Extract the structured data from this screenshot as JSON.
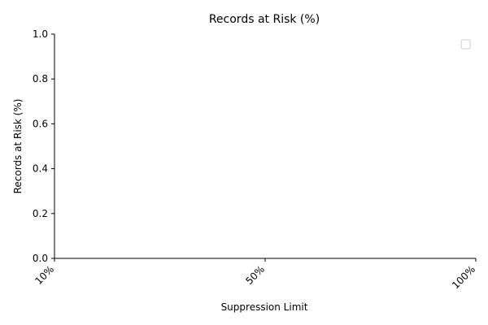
{
  "chart_data": {
    "type": "line",
    "title": "Records at Risk (%)",
    "xlabel": "Suppression Limit",
    "ylabel": "Records at Risk (%)",
    "categories": [
      "10%",
      "50%",
      "100%"
    ],
    "series": [],
    "ylim": [
      0,
      1
    ],
    "yticks": [
      "0.0",
      "0.2",
      "0.4",
      "0.6",
      "0.8",
      "1.0"
    ],
    "grid": false,
    "legend": {
      "position": "top-right",
      "entries": []
    }
  }
}
